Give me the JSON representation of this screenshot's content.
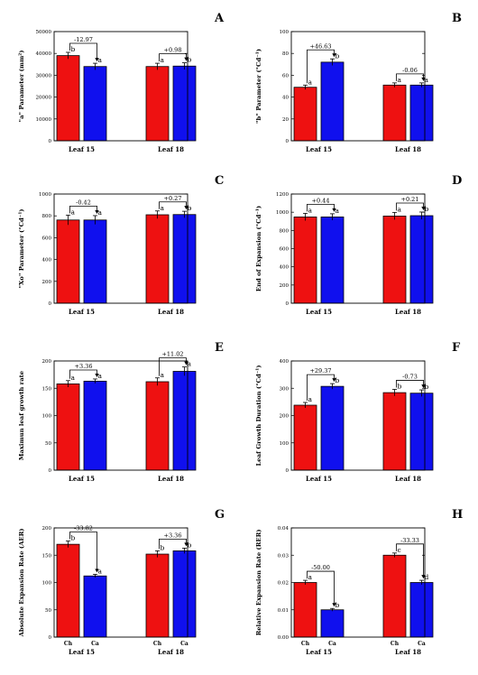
{
  "colors": {
    "red": "#ee1111",
    "blue": "#1010ee"
  },
  "chart_data": [
    {
      "type": "bar",
      "panel": "A",
      "ylabel": "\"a\" Parameter (mm²)",
      "ylim": [
        0,
        50000
      ],
      "yticks": [
        "0",
        "10000",
        "20000",
        "30000",
        "40000",
        "50000"
      ],
      "categories": [
        "Leaf 15",
        "Leaf 18"
      ],
      "sublabels": [
        "",
        ""
      ],
      "series": [
        {
          "values": [
            39000,
            34000
          ],
          "errors": [
            1500,
            1500
          ],
          "letters": [
            "b",
            "a"
          ]
        },
        {
          "values": [
            34000,
            34200
          ],
          "errors": [
            1500,
            1500
          ],
          "letters": [
            "a",
            "b"
          ]
        }
      ],
      "annotations": [
        "-12.97",
        "+0.98"
      ]
    },
    {
      "type": "bar",
      "panel": "B",
      "ylabel": "\"b\" Parameter (°Cd⁻¹)",
      "ylim": [
        0,
        100
      ],
      "yticks": [
        "0",
        "20",
        "40",
        "60",
        "80",
        "100"
      ],
      "categories": [
        "Leaf 15",
        "Leaf 18"
      ],
      "sublabels": [
        "",
        ""
      ],
      "series": [
        {
          "values": [
            49,
            51
          ],
          "errors": [
            2,
            2
          ],
          "letters": [
            "a",
            "a"
          ]
        },
        {
          "values": [
            72,
            51
          ],
          "errors": [
            3,
            2
          ],
          "letters": [
            "b",
            "a"
          ]
        }
      ],
      "annotations": [
        "+46.63",
        "-0.06"
      ]
    },
    {
      "type": "bar",
      "panel": "C",
      "ylabel": "\"Xo\" Parameter (°Cd⁻¹)",
      "ylim": [
        0,
        1000
      ],
      "yticks": [
        "0",
        "200",
        "400",
        "600",
        "800",
        "1000"
      ],
      "categories": [
        "Leaf 15",
        "Leaf 18"
      ],
      "sublabels": [
        "",
        ""
      ],
      "series": [
        {
          "values": [
            762,
            810
          ],
          "errors": [
            45,
            35
          ],
          "letters": [
            "a",
            "a"
          ]
        },
        {
          "values": [
            762,
            812
          ],
          "errors": [
            40,
            30
          ],
          "letters": [
            "a",
            "b"
          ]
        }
      ],
      "annotations": [
        "-0.42",
        "+0.27"
      ]
    },
    {
      "type": "bar",
      "panel": "D",
      "ylabel": "End of Expansion (°Cd⁻¹)",
      "ylim": [
        0,
        1200
      ],
      "yticks": [
        "0",
        "200",
        "400",
        "600",
        "800",
        "1000",
        "1200"
      ],
      "categories": [
        "Leaf 15",
        "Leaf 18"
      ],
      "sublabels": [
        "",
        ""
      ],
      "series": [
        {
          "values": [
            948,
            958
          ],
          "errors": [
            40,
            40
          ],
          "letters": [
            "a",
            "a"
          ]
        },
        {
          "values": [
            948,
            962
          ],
          "errors": [
            35,
            40
          ],
          "letters": [
            "a",
            "b"
          ]
        }
      ],
      "annotations": [
        "+0.44",
        "+0.21"
      ]
    },
    {
      "type": "bar",
      "panel": "E",
      "ylabel": "Maximun leaf growth rate",
      "ylim": [
        0,
        200
      ],
      "yticks": [
        "0",
        "50",
        "100",
        "150",
        "200"
      ],
      "categories": [
        "Leaf 15",
        "Leaf 18"
      ],
      "sublabels": [
        "",
        ""
      ],
      "series": [
        {
          "values": [
            158,
            162
          ],
          "errors": [
            6,
            7
          ],
          "letters": [
            "a",
            "a"
          ]
        },
        {
          "values": [
            163,
            181
          ],
          "errors": [
            4,
            8
          ],
          "letters": [
            "a",
            "a"
          ]
        }
      ],
      "annotations": [
        "+3.36",
        "+11.02"
      ]
    },
    {
      "type": "bar",
      "panel": "F",
      "ylabel": "Leaf Growth Duration (°Cd⁻¹)",
      "ylim": [
        0,
        400
      ],
      "yticks": [
        "0",
        "100",
        "200",
        "300",
        "400"
      ],
      "categories": [
        "Leaf 15",
        "Leaf 18"
      ],
      "sublabels": [
        "",
        ""
      ],
      "series": [
        {
          "values": [
            238,
            284
          ],
          "errors": [
            10,
            12
          ],
          "letters": [
            "a",
            "b"
          ]
        },
        {
          "values": [
            307,
            282
          ],
          "errors": [
            10,
            12
          ],
          "letters": [
            "b",
            "b"
          ]
        }
      ],
      "annotations": [
        "+29.37",
        "-0.73"
      ]
    },
    {
      "type": "bar",
      "panel": "G",
      "ylabel": "Absolute Expansion Rate (AER)",
      "ylim": [
        0,
        200
      ],
      "yticks": [
        "0",
        "50",
        "100",
        "150",
        "200"
      ],
      "categories": [
        "Leaf 15",
        "Leaf 18"
      ],
      "sublabels": [
        "Ch",
        "Ca"
      ],
      "series": [
        {
          "values": [
            170,
            152
          ],
          "errors": [
            6,
            6
          ],
          "letters": [
            "b",
            "b"
          ]
        },
        {
          "values": [
            112,
            158
          ],
          "errors": [
            3,
            5
          ],
          "letters": [
            "a",
            "b"
          ]
        }
      ],
      "annotations": [
        "-33.82",
        "+3.36"
      ]
    },
    {
      "type": "bar",
      "panel": "H",
      "ylabel": "Relative Expansion Rate (RER)",
      "ylim": [
        0,
        0.04
      ],
      "yticks": [
        "0.00",
        "0.01",
        "0.02",
        "0.03",
        "0.04"
      ],
      "categories": [
        "Leaf 15",
        "Leaf 18"
      ],
      "sublabels": [
        "Ch",
        "Ca"
      ],
      "series": [
        {
          "values": [
            0.02,
            0.03
          ],
          "errors": [
            0.0008,
            0.0008
          ],
          "letters": [
            "a",
            "c"
          ]
        },
        {
          "values": [
            0.01,
            0.02
          ],
          "errors": [
            0.0005,
            0.0008
          ],
          "letters": [
            "b",
            "d"
          ]
        }
      ],
      "annotations": [
        "-50.00",
        "-33.33"
      ]
    }
  ]
}
